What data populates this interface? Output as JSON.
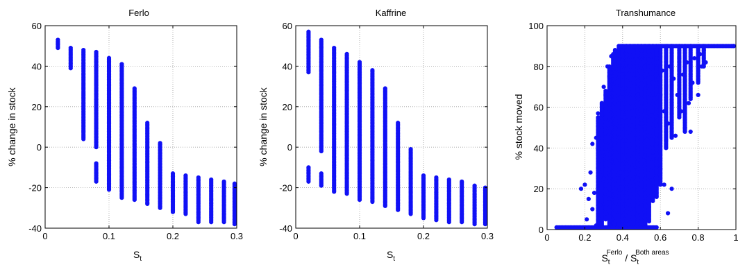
{
  "colors": {
    "marker": "#1010f5",
    "grid": "#a0a0a0",
    "axes": "#000000"
  },
  "chart_data": [
    {
      "type": "scatter",
      "title": "Ferlo",
      "xlabel": "S",
      "xlabel_sub": "t",
      "ylabel": "% change in stock",
      "xlim": [
        0,
        0.3
      ],
      "ylim": [
        -40,
        60
      ],
      "xticks": [
        "0",
        "0.1",
        "0.2",
        "0.3"
      ],
      "yticks": [
        "-40",
        "-20",
        "0",
        "20",
        "40",
        "60"
      ],
      "grid": true,
      "columns": [
        {
          "x": 0.02,
          "segments": [
            [
              49,
              53
            ]
          ]
        },
        {
          "x": 0.04,
          "segments": [
            [
              39,
              49
            ]
          ]
        },
        {
          "x": 0.06,
          "segments": [
            [
              4,
              48
            ]
          ]
        },
        {
          "x": 0.08,
          "segments": [
            [
              -17,
              -8
            ],
            [
              0,
              47
            ]
          ]
        },
        {
          "x": 0.1,
          "segments": [
            [
              -21,
              44
            ]
          ]
        },
        {
          "x": 0.12,
          "segments": [
            [
              -25,
              41
            ]
          ]
        },
        {
          "x": 0.14,
          "segments": [
            [
              -26,
              29
            ]
          ]
        },
        {
          "x": 0.16,
          "segments": [
            [
              -28,
              12
            ]
          ]
        },
        {
          "x": 0.18,
          "segments": [
            [
              -30,
              2
            ]
          ]
        },
        {
          "x": 0.2,
          "segments": [
            [
              -32,
              -13
            ]
          ]
        },
        {
          "x": 0.22,
          "segments": [
            [
              -33,
              -14
            ]
          ]
        },
        {
          "x": 0.24,
          "segments": [
            [
              -37,
              -15
            ]
          ]
        },
        {
          "x": 0.26,
          "segments": [
            [
              -37,
              -16
            ]
          ]
        },
        {
          "x": 0.28,
          "segments": [
            [
              -37,
              -17
            ]
          ]
        },
        {
          "x": 0.3,
          "segments": [
            [
              -38,
              -18
            ]
          ]
        }
      ]
    },
    {
      "type": "scatter",
      "title": "Kaffrine",
      "xlabel": "S",
      "xlabel_sub": "t",
      "ylabel": "% change in stock",
      "xlim": [
        0,
        0.3
      ],
      "ylim": [
        -40,
        60
      ],
      "xticks": [
        "0",
        "0.1",
        "0.2",
        "0.3"
      ],
      "yticks": [
        "-40",
        "-20",
        "0",
        "20",
        "40",
        "60"
      ],
      "grid": true,
      "columns": [
        {
          "x": 0.02,
          "segments": [
            [
              -17,
              -10
            ],
            [
              37,
              57
            ]
          ]
        },
        {
          "x": 0.04,
          "segments": [
            [
              -19,
              -13
            ],
            [
              -2,
              53
            ]
          ]
        },
        {
          "x": 0.06,
          "segments": [
            [
              -22,
              49
            ]
          ]
        },
        {
          "x": 0.08,
          "segments": [
            [
              -23,
              46
            ]
          ]
        },
        {
          "x": 0.1,
          "segments": [
            [
              -26,
              42
            ]
          ]
        },
        {
          "x": 0.12,
          "segments": [
            [
              -27,
              38
            ]
          ]
        },
        {
          "x": 0.14,
          "segments": [
            [
              -29,
              29
            ]
          ]
        },
        {
          "x": 0.16,
          "segments": [
            [
              -31,
              12
            ]
          ]
        },
        {
          "x": 0.18,
          "segments": [
            [
              -33,
              -1
            ]
          ]
        },
        {
          "x": 0.2,
          "segments": [
            [
              -35,
              -14
            ]
          ]
        },
        {
          "x": 0.22,
          "segments": [
            [
              -36,
              -15
            ]
          ]
        },
        {
          "x": 0.24,
          "segments": [
            [
              -37,
              -16
            ]
          ]
        },
        {
          "x": 0.26,
          "segments": [
            [
              -37,
              -17
            ]
          ]
        },
        {
          "x": 0.28,
          "segments": [
            [
              -38,
              -19
            ]
          ]
        },
        {
          "x": 0.3,
          "segments": [
            [
              -38,
              -20
            ]
          ]
        }
      ]
    },
    {
      "type": "scatter",
      "title": "Transhumance",
      "xlabel": "S",
      "xlabel_sub": "t",
      "xlabel_sup1": "Ferlo",
      "xlabel_mid": " / S",
      "xlabel_sub2": "t",
      "xlabel_sup2": "Both areas",
      "ylabel": "% stock moved",
      "xlim": [
        0,
        1
      ],
      "ylim": [
        0,
        100
      ],
      "xticks": [
        "0",
        "0.2",
        "0.4",
        "0.6",
        "0.8",
        "1"
      ],
      "yticks": [
        "0",
        "20",
        "40",
        "60",
        "80",
        "100"
      ],
      "grid": true,
      "baseline": {
        "y": 0,
        "x_from": 0.05,
        "x_to": 0.58
      },
      "plateau": {
        "y": 90,
        "x_from": 0.38,
        "x_to": 1.0
      },
      "points": [
        [
          0.18,
          20
        ],
        [
          0.2,
          22
        ],
        [
          0.21,
          5
        ],
        [
          0.22,
          15
        ],
        [
          0.23,
          28
        ],
        [
          0.24,
          42
        ],
        [
          0.24,
          10
        ],
        [
          0.25,
          18
        ],
        [
          0.26,
          45
        ],
        [
          0.26,
          2
        ],
        [
          0.27,
          57
        ],
        [
          0.27,
          30
        ],
        [
          0.28,
          55
        ],
        [
          0.28,
          12
        ],
        [
          0.29,
          62
        ],
        [
          0.29,
          38
        ],
        [
          0.3,
          70
        ],
        [
          0.3,
          25
        ],
        [
          0.31,
          66
        ],
        [
          0.31,
          48
        ],
        [
          0.31,
          8
        ],
        [
          0.32,
          80
        ],
        [
          0.32,
          35
        ],
        [
          0.33,
          75
        ],
        [
          0.33,
          15
        ],
        [
          0.34,
          85
        ],
        [
          0.34,
          50
        ],
        [
          0.35,
          60
        ],
        [
          0.35,
          22
        ],
        [
          0.36,
          88
        ],
        [
          0.36,
          40
        ],
        [
          0.37,
          72
        ],
        [
          0.37,
          5
        ],
        [
          0.38,
          82
        ],
        [
          0.38,
          45
        ],
        [
          0.39,
          65
        ],
        [
          0.39,
          28
        ],
        [
          0.4,
          78
        ],
        [
          0.4,
          10
        ],
        [
          0.41,
          55
        ],
        [
          0.41,
          35
        ],
        [
          0.42,
          86
        ],
        [
          0.42,
          20
        ],
        [
          0.43,
          68
        ],
        [
          0.43,
          42
        ],
        [
          0.44,
          80
        ],
        [
          0.44,
          14
        ],
        [
          0.45,
          60
        ],
        [
          0.45,
          30
        ],
        [
          0.46,
          74
        ],
        [
          0.46,
          48
        ],
        [
          0.47,
          84
        ],
        [
          0.47,
          24
        ],
        [
          0.48,
          66
        ],
        [
          0.48,
          40
        ],
        [
          0.49,
          78
        ],
        [
          0.49,
          18
        ],
        [
          0.5,
          70
        ],
        [
          0.5,
          52
        ],
        [
          0.51,
          82
        ],
        [
          0.51,
          34
        ],
        [
          0.52,
          62
        ],
        [
          0.52,
          12
        ],
        [
          0.53,
          76
        ],
        [
          0.53,
          44
        ],
        [
          0.54,
          68
        ],
        [
          0.54,
          26
        ],
        [
          0.55,
          80
        ],
        [
          0.55,
          56
        ],
        [
          0.56,
          72
        ],
        [
          0.56,
          38
        ],
        [
          0.57,
          64
        ],
        [
          0.57,
          20
        ],
        [
          0.58,
          84
        ],
        [
          0.58,
          48
        ],
        [
          0.59,
          74
        ],
        [
          0.6,
          66
        ],
        [
          0.6,
          30
        ],
        [
          0.61,
          78
        ],
        [
          0.62,
          58
        ],
        [
          0.62,
          22
        ],
        [
          0.63,
          70
        ],
        [
          0.64,
          52
        ],
        [
          0.64,
          8
        ],
        [
          0.65,
          80
        ],
        [
          0.66,
          62
        ],
        [
          0.66,
          20
        ],
        [
          0.67,
          74
        ],
        [
          0.68,
          46
        ],
        [
          0.69,
          66
        ],
        [
          0.7,
          84
        ],
        [
          0.71,
          58
        ],
        [
          0.72,
          76
        ],
        [
          0.73,
          50
        ],
        [
          0.74,
          82
        ],
        [
          0.75,
          62
        ],
        [
          0.76,
          48
        ],
        [
          0.77,
          72
        ],
        [
          0.78,
          84
        ],
        [
          0.8,
          66
        ],
        [
          0.81,
          86
        ],
        [
          0.82,
          80
        ],
        [
          0.83,
          88
        ],
        [
          0.84,
          82
        ]
      ],
      "bands": [
        {
          "x": 0.27,
          "y": [
            2,
            55
          ]
        },
        {
          "x": 0.29,
          "y": [
            0,
            62
          ]
        },
        {
          "x": 0.31,
          "y": [
            5,
            68
          ]
        },
        {
          "x": 0.33,
          "y": [
            0,
            80
          ]
        },
        {
          "x": 0.35,
          "y": [
            2,
            86
          ]
        },
        {
          "x": 0.36,
          "y": [
            0,
            88
          ]
        },
        {
          "x": 0.38,
          "y": [
            0,
            90
          ]
        },
        {
          "x": 0.4,
          "y": [
            0,
            90
          ]
        },
        {
          "x": 0.42,
          "y": [
            0,
            90
          ]
        },
        {
          "x": 0.44,
          "y": [
            1,
            90
          ]
        },
        {
          "x": 0.46,
          "y": [
            2,
            90
          ]
        },
        {
          "x": 0.48,
          "y": [
            0,
            90
          ]
        },
        {
          "x": 0.5,
          "y": [
            1,
            90
          ]
        },
        {
          "x": 0.52,
          "y": [
            0,
            90
          ]
        },
        {
          "x": 0.54,
          "y": [
            4,
            90
          ]
        },
        {
          "x": 0.56,
          "y": [
            14,
            90
          ]
        },
        {
          "x": 0.58,
          "y": [
            16,
            90
          ]
        },
        {
          "x": 0.6,
          "y": [
            22,
            90
          ]
        },
        {
          "x": 0.63,
          "y": [
            40,
            90
          ]
        },
        {
          "x": 0.66,
          "y": [
            45,
            90
          ]
        },
        {
          "x": 0.7,
          "y": [
            55,
            90
          ]
        },
        {
          "x": 0.73,
          "y": [
            48,
            90
          ]
        },
        {
          "x": 0.76,
          "y": [
            64,
            90
          ]
        },
        {
          "x": 0.8,
          "y": [
            72,
            90
          ]
        },
        {
          "x": 0.83,
          "y": [
            80,
            90
          ]
        }
      ]
    }
  ]
}
